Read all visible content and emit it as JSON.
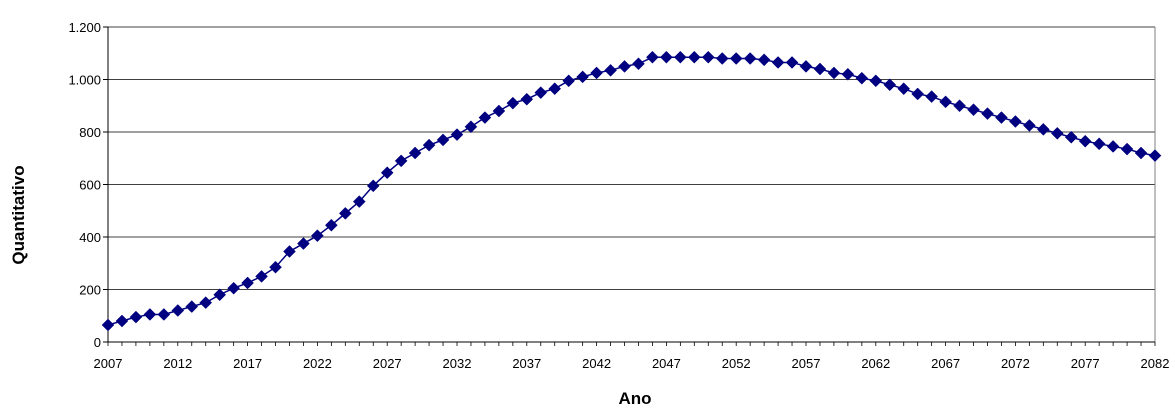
{
  "chart_data": {
    "type": "line",
    "title": "",
    "xlabel": "Ano",
    "ylabel": "Quantitativo",
    "xlim": [
      2007,
      2082
    ],
    "ylim": [
      0,
      1200
    ],
    "x_ticks": [
      2007,
      2012,
      2017,
      2022,
      2027,
      2032,
      2037,
      2042,
      2047,
      2052,
      2057,
      2062,
      2067,
      2072,
      2077,
      2082
    ],
    "y_ticks": [
      0,
      200,
      400,
      600,
      800,
      1000,
      1200
    ],
    "x_tick_labels": [
      "2007",
      "2012",
      "2017",
      "2022",
      "2027",
      "2032",
      "2037",
      "2042",
      "2047",
      "2052",
      "2057",
      "2062",
      "2067",
      "2072",
      "2077",
      "2082"
    ],
    "y_tick_labels": [
      "0",
      "200",
      "400",
      "600",
      "800",
      "1.000",
      "1.200"
    ],
    "grid": "horizontal",
    "legend": "none",
    "series": [
      {
        "color": "#000080",
        "marker": "diamond",
        "x": [
          2007,
          2008,
          2009,
          2010,
          2011,
          2012,
          2013,
          2014,
          2015,
          2016,
          2017,
          2018,
          2019,
          2020,
          2021,
          2022,
          2023,
          2024,
          2025,
          2026,
          2027,
          2028,
          2029,
          2030,
          2031,
          2032,
          2033,
          2034,
          2035,
          2036,
          2037,
          2038,
          2039,
          2040,
          2041,
          2042,
          2043,
          2044,
          2045,
          2046,
          2047,
          2048,
          2049,
          2050,
          2051,
          2052,
          2053,
          2054,
          2055,
          2056,
          2057,
          2058,
          2059,
          2060,
          2061,
          2062,
          2063,
          2064,
          2065,
          2066,
          2067,
          2068,
          2069,
          2070,
          2071,
          2072,
          2073,
          2074,
          2075,
          2076,
          2077,
          2078,
          2079,
          2080,
          2081,
          2082
        ],
        "values": [
          65,
          80,
          95,
          105,
          105,
          120,
          135,
          150,
          180,
          205,
          225,
          250,
          285,
          345,
          375,
          405,
          445,
          490,
          535,
          595,
          645,
          690,
          720,
          750,
          770,
          790,
          820,
          855,
          880,
          910,
          925,
          950,
          965,
          995,
          1010,
          1025,
          1035,
          1050,
          1060,
          1085,
          1085,
          1085,
          1085,
          1085,
          1080,
          1080,
          1080,
          1075,
          1065,
          1065,
          1050,
          1040,
          1025,
          1020,
          1005,
          995,
          980,
          965,
          945,
          935,
          915,
          900,
          885,
          870,
          855,
          840,
          825,
          810,
          795,
          780,
          765,
          755,
          745,
          735,
          720,
          710
        ]
      }
    ]
  }
}
